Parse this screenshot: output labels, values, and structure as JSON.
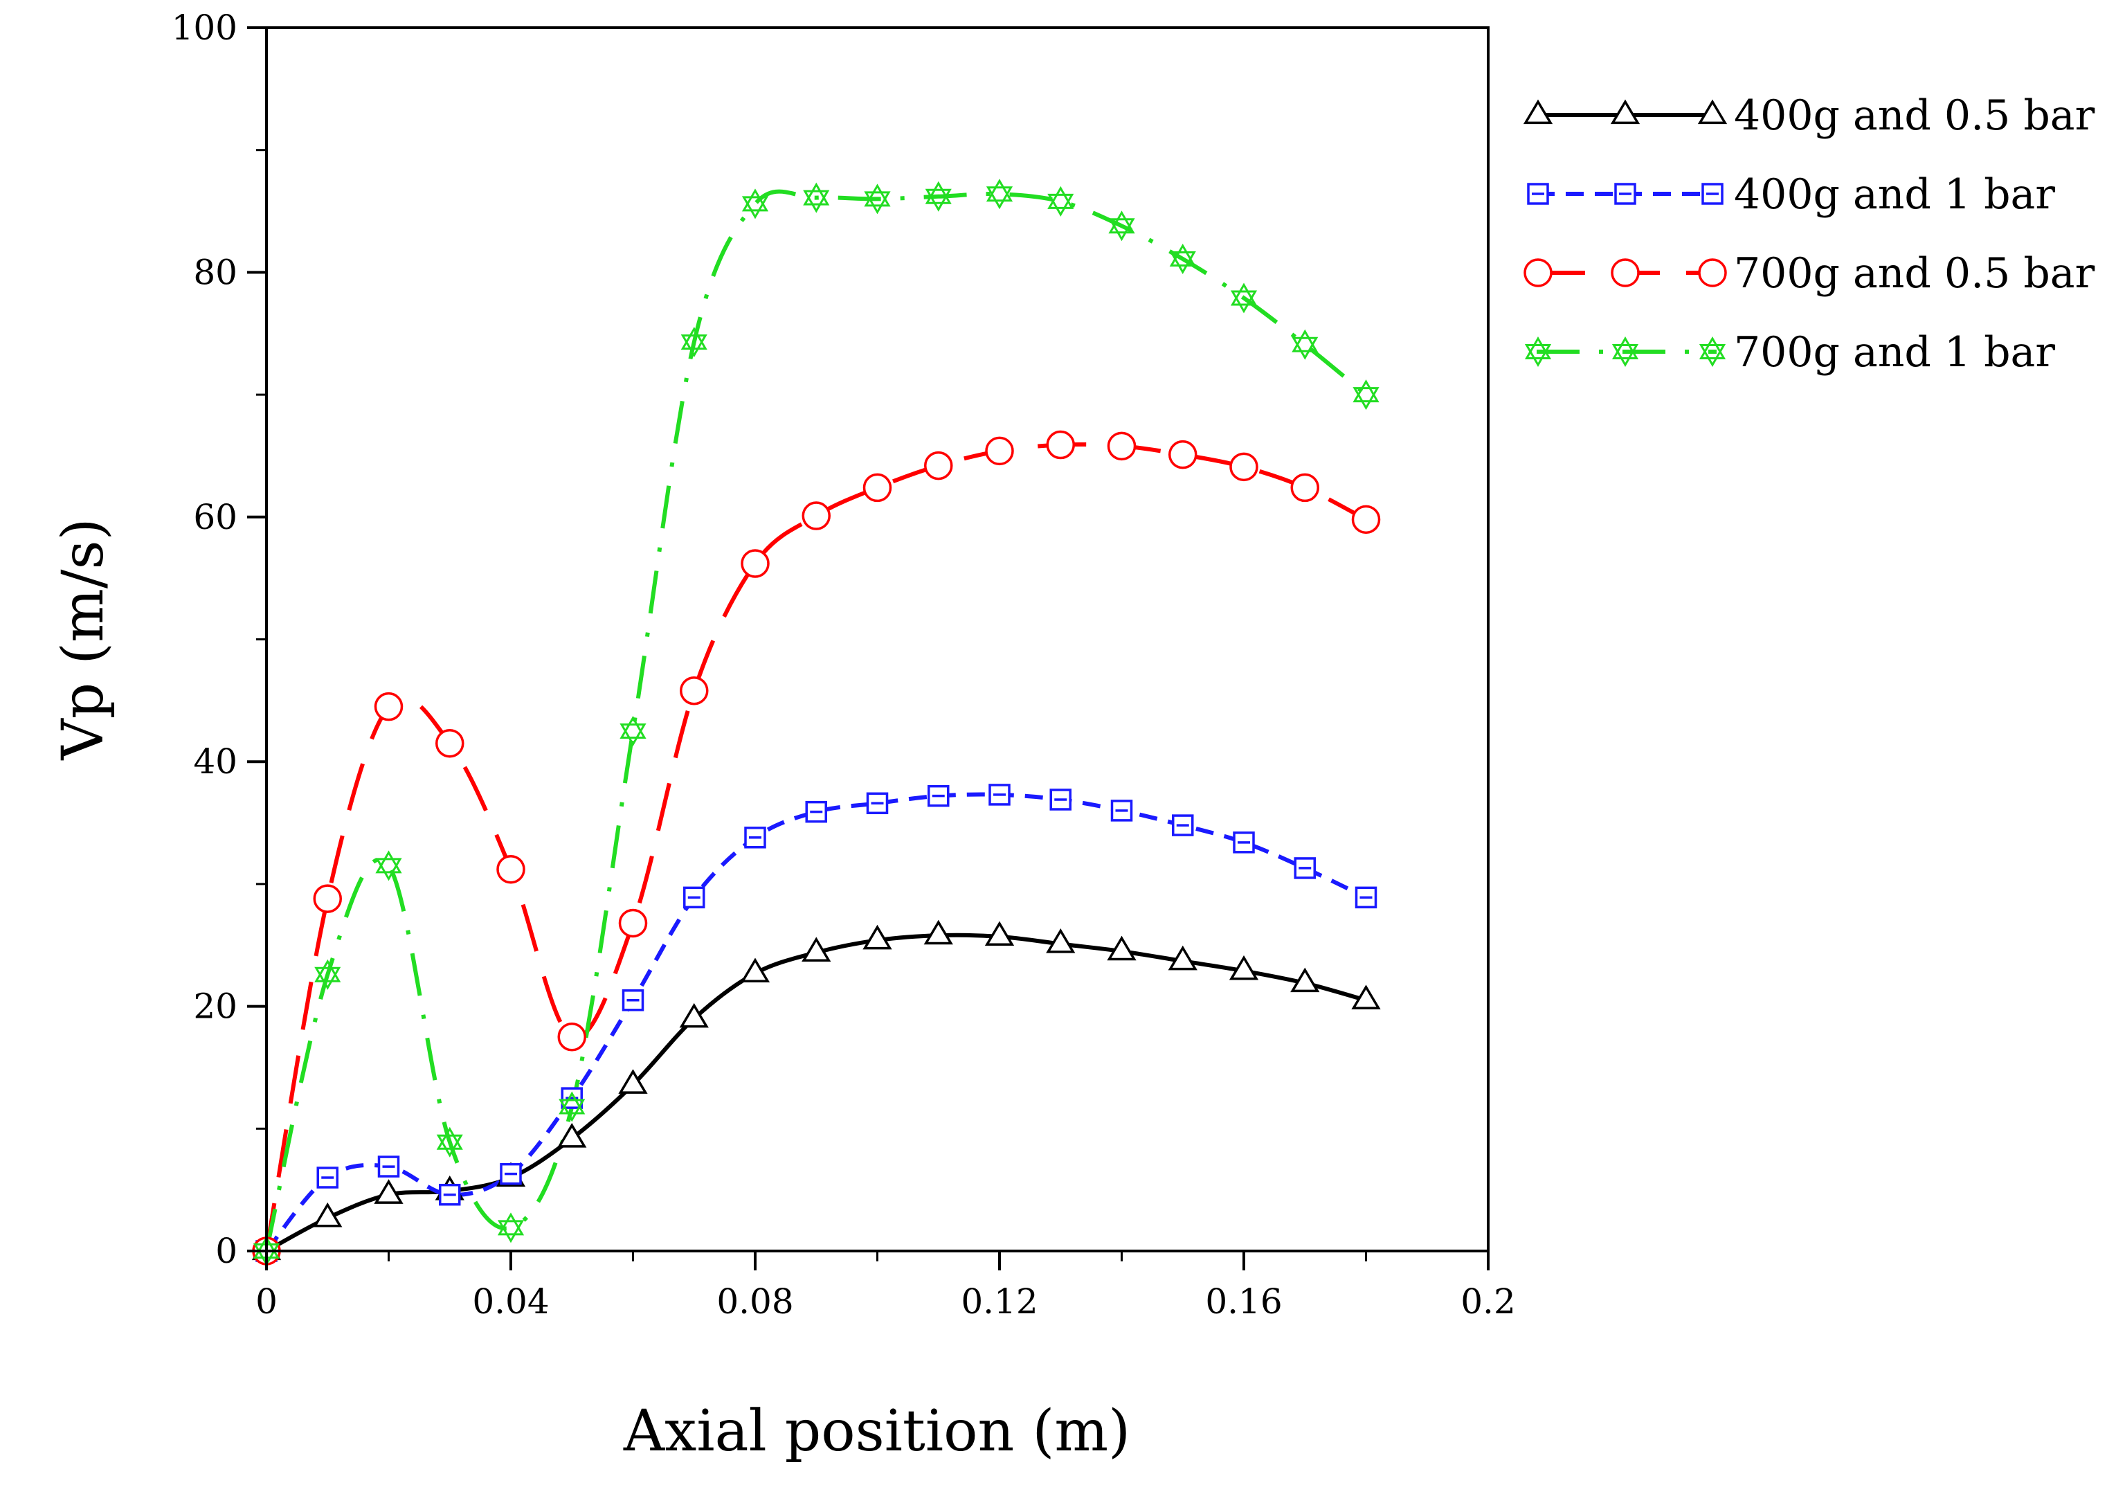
{
  "chart_data": {
    "type": "line",
    "title": "",
    "xlabel": "Axial position (m)",
    "ylabel": "Vp (m/s)",
    "xlim": [
      0,
      0.2
    ],
    "ylim": [
      0,
      100
    ],
    "x_ticks": [
      {
        "value": 0,
        "label": "0"
      },
      {
        "value": 0.04,
        "label": "0.04"
      },
      {
        "value": 0.08,
        "label": "0.08"
      },
      {
        "value": 0.12,
        "label": "0.12"
      },
      {
        "value": 0.16,
        "label": "0.16"
      },
      {
        "value": 0.2,
        "label": "0.2"
      }
    ],
    "y_ticks": [
      {
        "value": 0,
        "label": "0"
      },
      {
        "value": 20,
        "label": "20"
      },
      {
        "value": 40,
        "label": "40"
      },
      {
        "value": 60,
        "label": "60"
      },
      {
        "value": 80,
        "label": "80"
      },
      {
        "value": 100,
        "label": "100"
      }
    ],
    "grid": false,
    "legend_position": "outside-right",
    "series": [
      {
        "name": "400g and 0.5 bar",
        "color": "#000000",
        "marker": "triangle",
        "line_style": "solid",
        "x": [
          0,
          0.01,
          0.02,
          0.03,
          0.04,
          0.05,
          0.06,
          0.07,
          0.08,
          0.09,
          0.1,
          0.11,
          0.12,
          0.13,
          0.14,
          0.15,
          0.16,
          0.17,
          0.18
        ],
        "values": [
          0,
          2.7,
          4.6,
          4.9,
          6.0,
          9.2,
          13.6,
          19.0,
          22.7,
          24.4,
          25.4,
          25.8,
          25.7,
          25.1,
          24.5,
          23.7,
          22.9,
          21.9,
          20.5
        ]
      },
      {
        "name": "400g and 1 bar",
        "color": "#1a1aff",
        "marker": "square",
        "line_style": "dashed",
        "x": [
          0,
          0.01,
          0.02,
          0.03,
          0.04,
          0.05,
          0.06,
          0.07,
          0.08,
          0.09,
          0.1,
          0.11,
          0.12,
          0.13,
          0.14,
          0.15,
          0.16,
          0.17,
          0.18
        ],
        "values": [
          0,
          6.0,
          6.9,
          4.6,
          6.3,
          12.5,
          20.5,
          28.9,
          33.8,
          35.9,
          36.6,
          37.2,
          37.3,
          36.9,
          36.0,
          34.8,
          33.4,
          31.3,
          28.9
        ]
      },
      {
        "name": "700g and 0.5 bar",
        "color": "#ff0000",
        "marker": "circle",
        "line_style": "long-dash",
        "x": [
          0,
          0.01,
          0.02,
          0.03,
          0.04,
          0.05,
          0.06,
          0.07,
          0.08,
          0.09,
          0.1,
          0.11,
          0.12,
          0.13,
          0.14,
          0.15,
          0.16,
          0.17,
          0.18
        ],
        "values": [
          0,
          28.8,
          44.5,
          41.5,
          31.2,
          17.5,
          26.8,
          45.8,
          56.2,
          60.1,
          62.4,
          64.2,
          65.4,
          65.9,
          65.8,
          65.1,
          64.1,
          62.4,
          59.8
        ]
      },
      {
        "name": "700g and 1 bar",
        "color": "#22dd22",
        "marker": "star",
        "line_style": "dash-dot",
        "x": [
          0,
          0.01,
          0.02,
          0.03,
          0.04,
          0.05,
          0.06,
          0.07,
          0.08,
          0.09,
          0.1,
          0.11,
          0.12,
          0.13,
          0.14,
          0.15,
          0.16,
          0.17,
          0.18
        ],
        "values": [
          0,
          22.6,
          31.5,
          8.9,
          1.9,
          11.8,
          42.5,
          74.3,
          85.6,
          86.1,
          86.0,
          86.2,
          86.4,
          85.8,
          83.8,
          81.1,
          77.9,
          74.1,
          70.0
        ]
      }
    ]
  }
}
